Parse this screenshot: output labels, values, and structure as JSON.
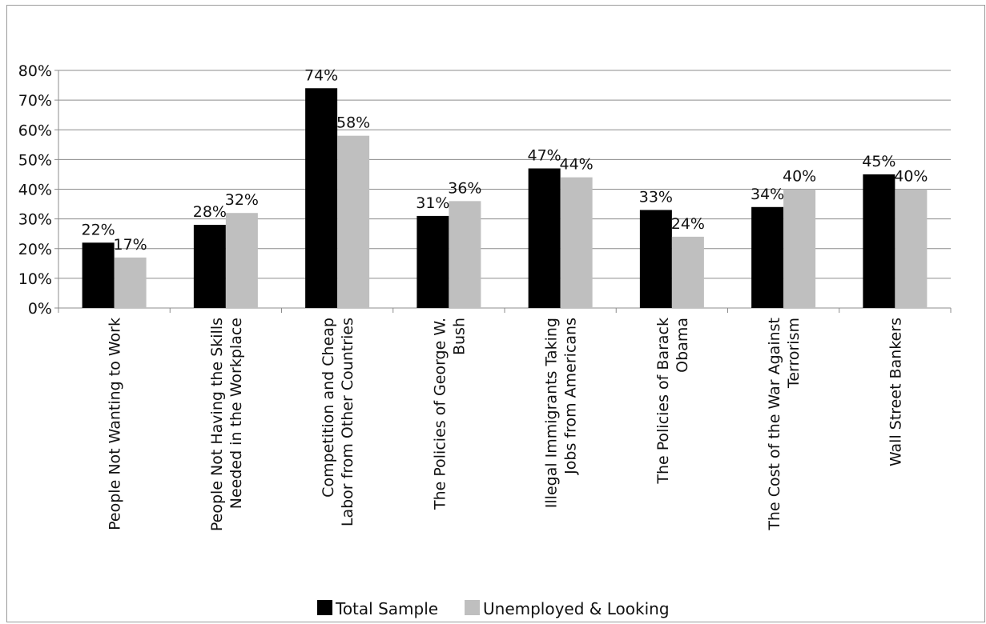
{
  "chart_data": {
    "type": "bar",
    "title": "",
    "xlabel": "",
    "ylabel": "",
    "ylim": [
      0,
      80
    ],
    "y_ticks": [
      "0%",
      "10%",
      "20%",
      "30%",
      "40%",
      "50%",
      "60%",
      "70%",
      "80%"
    ],
    "grid": true,
    "legend_position": "bottom",
    "categories": [
      [
        "People Not Wanting to Work"
      ],
      [
        "People Not Having the Skills",
        "Needed in the Workplace"
      ],
      [
        "Competition and Cheap",
        "Labor from Other Countries"
      ],
      [
        "The Policies of George W.",
        "Bush"
      ],
      [
        "Illegal Immigrants Taking",
        "Jobs from Americans"
      ],
      [
        "The Policies of Barack",
        "Obama"
      ],
      [
        "The Cost of the War Against",
        "Terrorism"
      ],
      [
        "Wall Street Bankers"
      ]
    ],
    "series": [
      {
        "name": "Total Sample",
        "color": "#000000",
        "values": [
          22,
          28,
          74,
          31,
          47,
          33,
          34,
          45
        ],
        "labels": [
          "22%",
          "28%",
          "74%",
          "31%",
          "47%",
          "33%",
          "34%",
          "45%"
        ]
      },
      {
        "name": "Unemployed & Looking",
        "color": "#bfbfbf",
        "values": [
          17,
          32,
          58,
          36,
          44,
          24,
          40,
          40
        ],
        "labels": [
          "17%",
          "32%",
          "58%",
          "36%",
          "44%",
          "24%",
          "40%",
          "40%"
        ]
      }
    ]
  }
}
